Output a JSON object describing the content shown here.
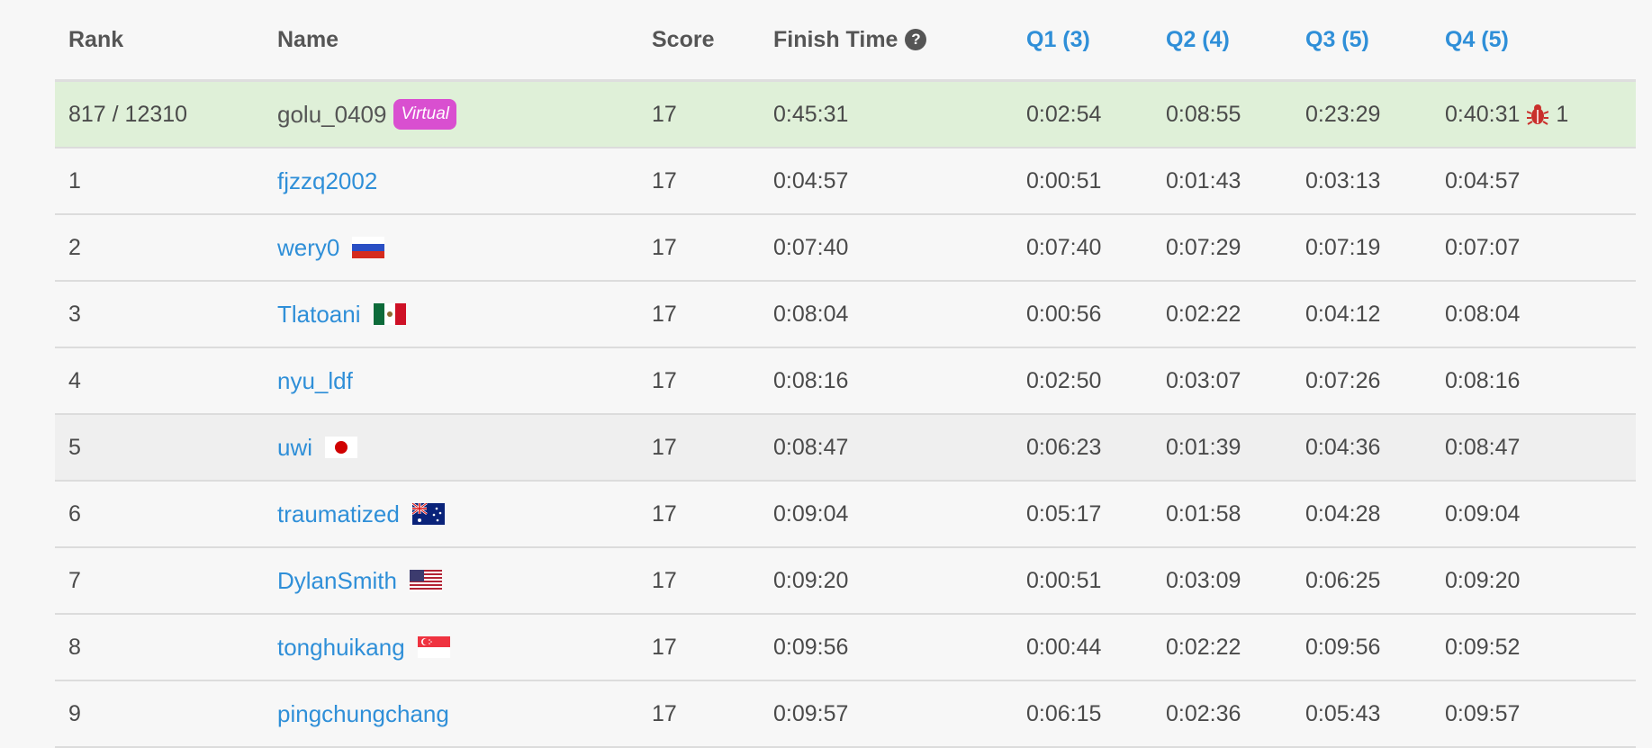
{
  "header": {
    "rank": "Rank",
    "name": "Name",
    "score": "Score",
    "finish_time": "Finish Time",
    "help_glyph": "?",
    "q1": "Q1 (3)",
    "q2": "Q2 (4)",
    "q3": "Q3 (5)",
    "q4": "Q4 (5)"
  },
  "me": {
    "rank": "817 / 12310",
    "name": "golu_0409",
    "badge": "Virtual",
    "score": "17",
    "finish": "0:45:31",
    "q1": "0:02:54",
    "q2": "0:08:55",
    "q3": "0:23:29",
    "q4": "0:40:31",
    "q4_icon": "bug-icon",
    "q4_bugs": "1"
  },
  "rows": [
    {
      "rank": "1",
      "name": "fjzzq2002",
      "flag": "",
      "score": "17",
      "finish": "0:04:57",
      "q1": "0:00:51",
      "q2": "0:01:43",
      "q3": "0:03:13",
      "q4": "0:04:57"
    },
    {
      "rank": "2",
      "name": "wery0",
      "flag": "russia-flag-icon",
      "score": "17",
      "finish": "0:07:40",
      "q1": "0:07:40",
      "q2": "0:07:29",
      "q3": "0:07:19",
      "q4": "0:07:07"
    },
    {
      "rank": "3",
      "name": "Tlatoani",
      "flag": "mexico-flag-icon",
      "score": "17",
      "finish": "0:08:04",
      "q1": "0:00:56",
      "q2": "0:02:22",
      "q3": "0:04:12",
      "q4": "0:08:04"
    },
    {
      "rank": "4",
      "name": "nyu_ldf",
      "flag": "",
      "score": "17",
      "finish": "0:08:16",
      "q1": "0:02:50",
      "q2": "0:03:07",
      "q3": "0:07:26",
      "q4": "0:08:16"
    },
    {
      "rank": "5",
      "name": "uwi",
      "flag": "japan-flag-icon",
      "score": "17",
      "finish": "0:08:47",
      "q1": "0:06:23",
      "q2": "0:01:39",
      "q3": "0:04:36",
      "q4": "0:08:47"
    },
    {
      "rank": "6",
      "name": "traumatized",
      "flag": "australia-flag-icon",
      "score": "17",
      "finish": "0:09:04",
      "q1": "0:05:17",
      "q2": "0:01:58",
      "q3": "0:04:28",
      "q4": "0:09:04"
    },
    {
      "rank": "7",
      "name": "DylanSmith",
      "flag": "usa-flag-icon",
      "score": "17",
      "finish": "0:09:20",
      "q1": "0:00:51",
      "q2": "0:03:09",
      "q3": "0:06:25",
      "q4": "0:09:20"
    },
    {
      "rank": "8",
      "name": "tonghuikang",
      "flag": "singapore-flag-icon",
      "score": "17",
      "finish": "0:09:56",
      "q1": "0:00:44",
      "q2": "0:02:22",
      "q3": "0:09:56",
      "q4": "0:09:52"
    },
    {
      "rank": "9",
      "name": "pingchungchang",
      "flag": "",
      "score": "17",
      "finish": "0:09:57",
      "q1": "0:06:15",
      "q2": "0:02:36",
      "q3": "0:05:43",
      "q4": "0:09:57"
    }
  ],
  "colors": {
    "link": "#2f8fd8",
    "me_row_bg": "#dff0d8",
    "virtual_badge": "#d94fd0",
    "bug": "#c9302c"
  }
}
